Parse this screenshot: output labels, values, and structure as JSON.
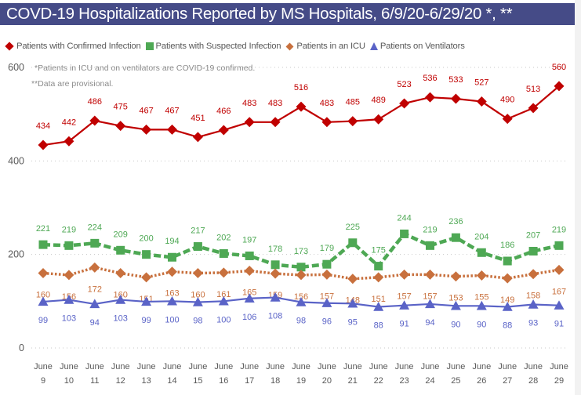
{
  "title": "COVD-19 Hospitalizations Reported by MS Hospitals, 6/9/20-6/29/20 *, **",
  "notes": [
    "*Patients in ICU and on ventilators are COVID-19 confirmed.",
    "**Data are provisional."
  ],
  "legend": [
    {
      "label": "Patients with Confirmed Infection",
      "marker": "diamond-icon",
      "color": "#c00000"
    },
    {
      "label": "Patients with Suspected Infection",
      "marker": "square-icon",
      "color": "#4ea854"
    },
    {
      "label": "Patients in an ICU",
      "marker": "diamond-icon",
      "color": "#c8703d"
    },
    {
      "label": "Patients on Ventilators",
      "marker": "triangle-icon",
      "color": "#5a63c7"
    }
  ],
  "chart_data": {
    "type": "line",
    "title": "COVD-19 Hospitalizations Reported by MS Hospitals, 6/9/20-6/29/20 *, **",
    "xlabel": "",
    "ylabel": "",
    "ylim": [
      0,
      600
    ],
    "yticks": [
      0,
      200,
      400,
      600
    ],
    "grid": "horizontal dotted",
    "legend_position": "top-left",
    "categories": [
      [
        "June",
        "9"
      ],
      [
        "June",
        "10"
      ],
      [
        "June",
        "11"
      ],
      [
        "June",
        "12"
      ],
      [
        "June",
        "13"
      ],
      [
        "June",
        "14"
      ],
      [
        "June",
        "15"
      ],
      [
        "June",
        "16"
      ],
      [
        "June",
        "17"
      ],
      [
        "June",
        "18"
      ],
      [
        "June",
        "19"
      ],
      [
        "June",
        "20"
      ],
      [
        "June",
        "21"
      ],
      [
        "June",
        "22"
      ],
      [
        "June",
        "23"
      ],
      [
        "June",
        "24"
      ],
      [
        "June",
        "25"
      ],
      [
        "June",
        "26"
      ],
      [
        "June",
        "27"
      ],
      [
        "June",
        "28"
      ],
      [
        "June",
        "29"
      ]
    ],
    "series": [
      {
        "name": "Patients with Confirmed Infection",
        "color": "#c00000",
        "marker": "diamond",
        "line_style": "solid",
        "label_position": "above",
        "values": [
          434,
          442,
          486,
          475,
          467,
          467,
          451,
          466,
          483,
          483,
          516,
          483,
          485,
          489,
          523,
          536,
          533,
          527,
          490,
          513,
          560
        ]
      },
      {
        "name": "Patients with Suspected Infection",
        "color": "#4ea854",
        "marker": "square",
        "line_style": "dashed",
        "label_position": "above",
        "values": [
          221,
          219,
          224,
          209,
          200,
          194,
          217,
          202,
          197,
          178,
          173,
          179,
          225,
          175,
          244,
          219,
          236,
          204,
          186,
          207,
          219
        ]
      },
      {
        "name": "Patients in an ICU",
        "color": "#c8703d",
        "marker": "diamond",
        "line_style": "dotted",
        "label_position": "below",
        "values": [
          160,
          156,
          172,
          160,
          151,
          163,
          160,
          161,
          165,
          159,
          156,
          157,
          148,
          151,
          157,
          157,
          153,
          155,
          149,
          158,
          167
        ]
      },
      {
        "name": "Patients on Ventilators",
        "color": "#5a63c7",
        "marker": "triangle",
        "line_style": "solid",
        "label_position": "below",
        "values": [
          99,
          103,
          94,
          103,
          99,
          100,
          98,
          100,
          106,
          108,
          98,
          96,
          95,
          88,
          91,
          94,
          90,
          90,
          88,
          93,
          91
        ]
      }
    ]
  }
}
